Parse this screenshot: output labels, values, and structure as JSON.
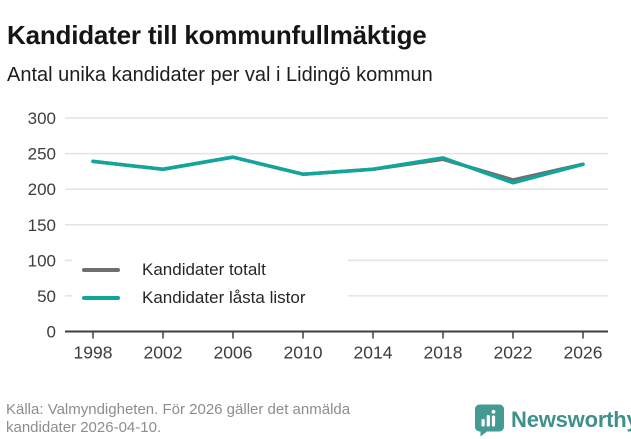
{
  "header": {
    "title": "Kandidater till kommunfullmäktige",
    "subtitle": "Antal unika kandidater per val i Lidingö kommun"
  },
  "chart_data": {
    "type": "line",
    "x_labels": [
      "1998",
      "2002",
      "2006",
      "2010",
      "2014",
      "2018",
      "2022",
      "2026"
    ],
    "series": [
      {
        "name": "Kandidater totalt",
        "color": "#6f6f6f",
        "values": [
          239,
          228,
          245,
          221,
          228,
          242,
          213,
          235
        ]
      },
      {
        "name": "Kandidater låsta listor",
        "color": "#10a69b",
        "values": [
          239,
          228,
          245,
          221,
          228,
          244,
          209,
          235
        ]
      }
    ],
    "ylim": [
      0,
      300
    ],
    "yticks": [
      0,
      50,
      100,
      150,
      200,
      250,
      300
    ],
    "grid": true,
    "legend_position": "inside-bottom-left",
    "xlabel": "",
    "ylabel": ""
  },
  "footer": {
    "line1": "Källa: Valmyndigheten. För 2026 gäller det anmälda",
    "line2": "kandidater 2026-04-10.",
    "brand": "Newsworthy"
  },
  "colors": {
    "accent_teal": "#10a69b",
    "series_gray": "#6f6f6f",
    "brand_teal": "#459a94",
    "gridline": "#e3e3e3",
    "axis": "#3f3f3f",
    "muted_text": "#8d8d8d"
  }
}
